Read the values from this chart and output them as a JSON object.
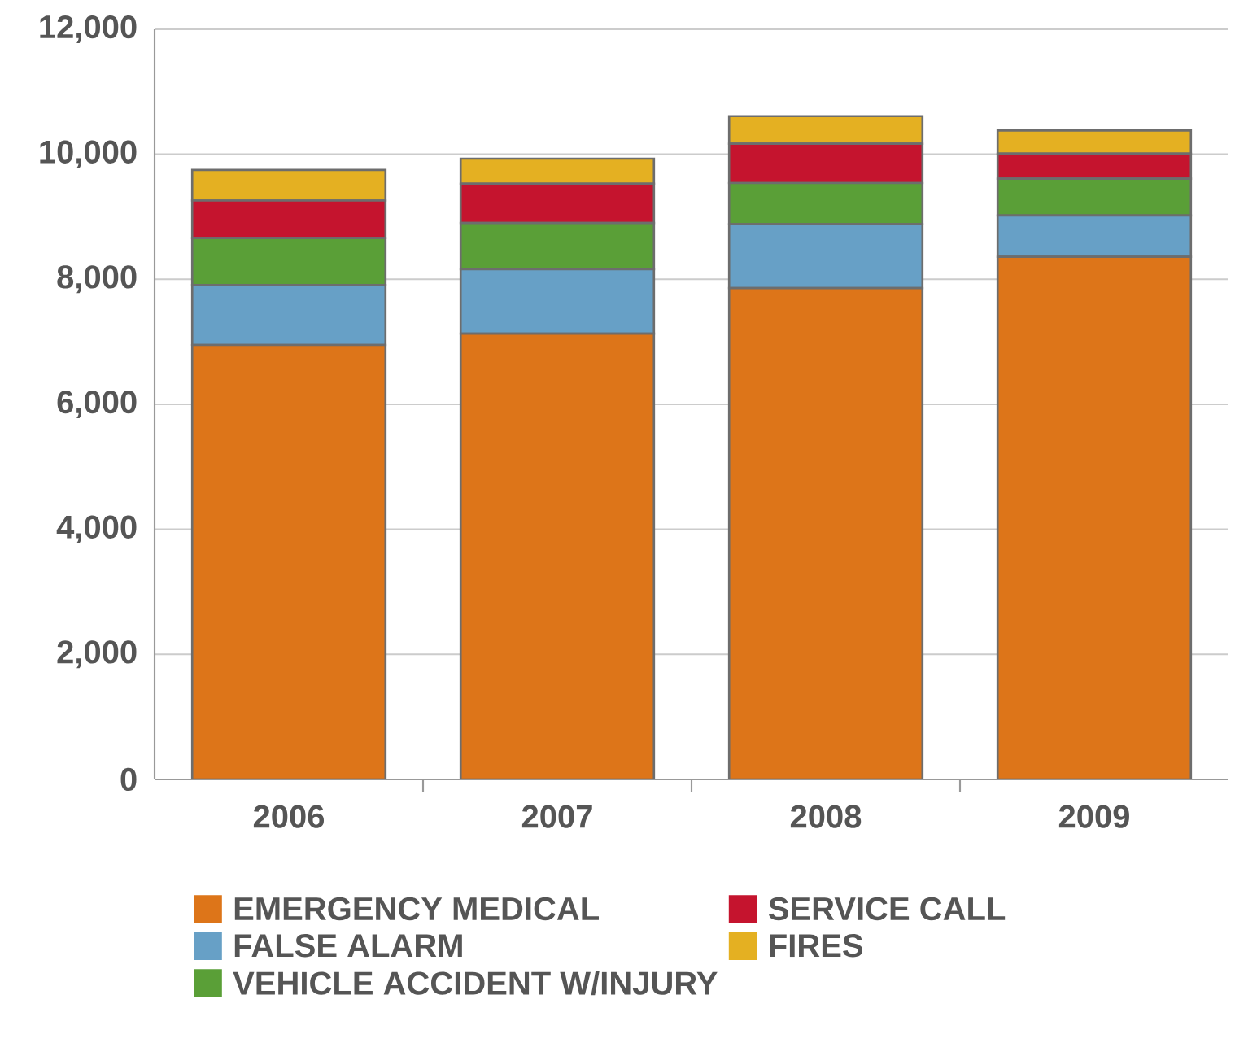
{
  "chart_data": {
    "type": "bar",
    "stacked": true,
    "categories": [
      "2006",
      "2007",
      "2008",
      "2009"
    ],
    "series": [
      {
        "name": "EMERGENCY MEDICAL",
        "color": "#dd7519",
        "values": [
          6950,
          7130,
          7860,
          8360
        ]
      },
      {
        "name": "FALSE ALARM",
        "color": "#67a0c6",
        "values": [
          960,
          1030,
          1020,
          660
        ]
      },
      {
        "name": "VEHICLE ACCIDENT W/INJURY",
        "color": "#5a9f37",
        "values": [
          750,
          740,
          660,
          590
        ]
      },
      {
        "name": "SERVICE CALL",
        "color": "#c5142e",
        "values": [
          600,
          630,
          630,
          400
        ]
      },
      {
        "name": "FIRES",
        "color": "#e4b022",
        "values": [
          490,
          400,
          440,
          370
        ]
      }
    ],
    "ylim": [
      0,
      12000
    ],
    "yticks": [
      0,
      {
        "value": 2000,
        "label": "2,000"
      },
      {
        "value": 4000,
        "label": "4,000"
      },
      {
        "value": 6000,
        "label": "6,000"
      },
      {
        "value": 8000,
        "label": "8,000"
      },
      {
        "value": 10000,
        "label": "10,000"
      },
      {
        "value": 12000,
        "label": "12,000"
      }
    ],
    "grid": "y",
    "legend": "bottom"
  }
}
